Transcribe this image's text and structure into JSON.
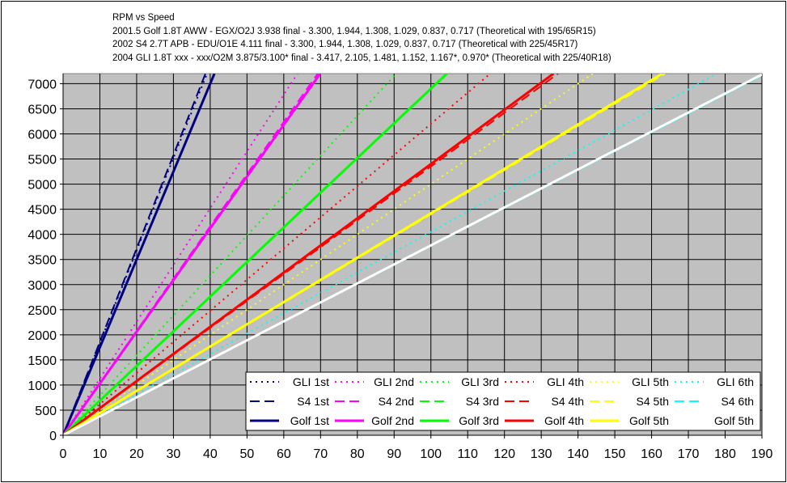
{
  "chart_data": {
    "type": "line",
    "title": "RPM vs Speed",
    "subtitle_lines": [
      "2001.5 Golf 1.8T AWW - EGX/O2J 3.938 final - 3.300, 1.944, 1.308, 1.029, 0.837, 0.717 (Theoretical with 195/65R15)",
      "2002 S4 2.7T APB - EDU/O1E 4.111 final - 3.300, 1.944, 1.308, 1.029, 0.837, 0.717 (Theoretical with 225/45R17)",
      "2004 GLI 1.8T xxx - xxx/O2M 3.875/3.100* final - 3.417, 2.105, 1.481, 1.152, 1.167*, 0.970* (Theoretical with 225/40R18)"
    ],
    "xlim": [
      0,
      190
    ],
    "ylim": [
      0,
      7200
    ],
    "x_ticks": [
      0,
      10,
      20,
      30,
      40,
      50,
      60,
      70,
      80,
      90,
      100,
      110,
      120,
      130,
      140,
      150,
      160,
      170,
      180,
      190
    ],
    "y_ticks": [
      0,
      500,
      1000,
      1500,
      2000,
      2500,
      3000,
      3500,
      4000,
      4500,
      5000,
      5500,
      6000,
      6500,
      7000
    ],
    "grid": true,
    "legend_position": "bottom-right",
    "plot_background": "#C0C0C0",
    "series": [
      {
        "name": "GLI 1st",
        "color": "#000080",
        "style": "dotted",
        "rpm_per_unit": 184
      },
      {
        "name": "GLI 2nd",
        "color": "#FF00FF",
        "style": "dotted",
        "rpm_per_unit": 113
      },
      {
        "name": "GLI 3rd",
        "color": "#00FF00",
        "style": "dotted",
        "rpm_per_unit": 79.5
      },
      {
        "name": "GLI 4th",
        "color": "#FF0000",
        "style": "dotted",
        "rpm_per_unit": 62
      },
      {
        "name": "GLI 5th",
        "color": "#FFFF00",
        "style": "dotted",
        "rpm_per_unit": 50
      },
      {
        "name": "GLI 6th",
        "color": "#00FFFF",
        "style": "dotted",
        "rpm_per_unit": 40.5
      },
      {
        "name": "S4 1st",
        "color": "#000080",
        "style": "dashed",
        "rpm_per_unit": 186
      },
      {
        "name": "S4 2nd",
        "color": "#FF00FF",
        "style": "dashed",
        "rpm_per_unit": 104
      },
      {
        "name": "S4 3rd",
        "color": "#00FF00",
        "style": "dashed",
        "rpm_per_unit": 69
      },
      {
        "name": "S4 4th",
        "color": "#FF0000",
        "style": "dashed",
        "rpm_per_unit": 53.5
      },
      {
        "name": "S4 5th",
        "color": "#FFFF00",
        "style": "dashed",
        "rpm_per_unit": 44
      },
      {
        "name": "S4 6th",
        "color": "#00FFFF",
        "style": "dashed",
        "rpm_per_unit": 37.7
      },
      {
        "name": "Golf 1st",
        "color": "#000080",
        "style": "solid",
        "rpm_per_unit": 175
      },
      {
        "name": "Golf 2nd",
        "color": "#FF00FF",
        "style": "solid",
        "rpm_per_unit": 103
      },
      {
        "name": "Golf 3rd",
        "color": "#00FF00",
        "style": "solid",
        "rpm_per_unit": 69
      },
      {
        "name": "Golf 4th",
        "color": "#FF0000",
        "style": "solid",
        "rpm_per_unit": 54
      },
      {
        "name": "Golf 5th",
        "color": "#FFFF00",
        "style": "solid",
        "rpm_per_unit": 44.2
      },
      {
        "name": "Golf 5th",
        "color": "#FFFFFF",
        "style": "solid",
        "rpm_per_unit": 37.8
      }
    ]
  }
}
